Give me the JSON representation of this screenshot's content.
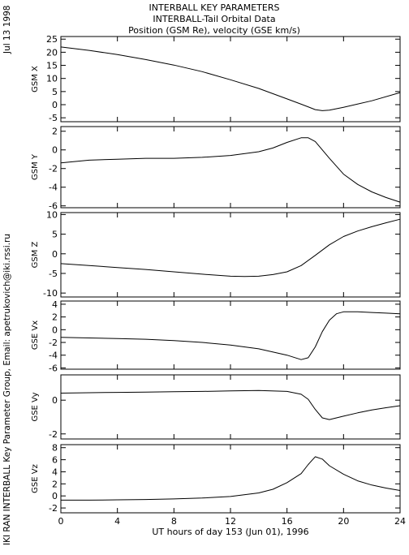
{
  "header": {
    "title1": "INTERBALL KEY PARAMETERS",
    "title2": "INTERBALL-Tail Orbital Data",
    "title3": "Position (GSM Re), velocity (GSE km/s)"
  },
  "side_labels": {
    "date": "Jul 13 1998",
    "credit": "IKI RAN INTERBALL Key Parameter Group, Email: apetrukovich@iki.rssi.ru"
  },
  "chart_data": {
    "type": "line",
    "xlabel": "UT hours of day 153 (Jun 01), 1996",
    "xlim": [
      0,
      24
    ],
    "xticks": [
      0,
      4,
      8,
      12,
      16,
      20,
      24
    ],
    "panels": [
      {
        "ylabel": "GSM X",
        "ylim": [
          -6.5,
          26
        ],
        "yticks": [
          -5,
          0,
          5,
          10,
          15,
          20,
          25
        ],
        "x": [
          0,
          2,
          4,
          6,
          8,
          10,
          12,
          14,
          16,
          17,
          18,
          18.5,
          19,
          20,
          22,
          24
        ],
        "y": [
          22,
          20.7,
          19.1,
          17.2,
          15.1,
          12.6,
          9.5,
          6.2,
          2.2,
          0.2,
          -1.9,
          -2.3,
          -2.1,
          -1.0,
          1.5,
          4.6
        ]
      },
      {
        "ylabel": "GSM Y",
        "ylim": [
          -6.2,
          2.5
        ],
        "yticks": [
          -6,
          -4,
          -2,
          0,
          2
        ],
        "x": [
          0,
          2,
          4,
          6,
          8,
          10,
          12,
          14,
          15,
          16,
          17,
          17.5,
          18,
          19,
          20,
          21,
          22,
          23,
          24
        ],
        "y": [
          -1.4,
          -1.1,
          -1.0,
          -0.9,
          -0.9,
          -0.8,
          -0.6,
          -0.2,
          0.2,
          0.8,
          1.3,
          1.3,
          0.9,
          -0.9,
          -2.6,
          -3.7,
          -4.5,
          -5.1,
          -5.6
        ]
      },
      {
        "ylabel": "GSM Z",
        "ylim": [
          -11,
          10.5
        ],
        "yticks": [
          -10,
          -5,
          0,
          5,
          10
        ],
        "x": [
          0,
          2,
          4,
          6,
          8,
          10,
          12,
          13,
          14,
          15,
          16,
          17,
          18,
          19,
          20,
          21,
          22,
          23,
          24
        ],
        "y": [
          -2.5,
          -3,
          -3.5,
          -4,
          -4.6,
          -5.2,
          -5.7,
          -5.8,
          -5.7,
          -5.3,
          -4.6,
          -3.0,
          -0.4,
          2.3,
          4.4,
          5.8,
          6.9,
          7.9,
          8.8
        ]
      },
      {
        "ylabel": "GSE Vx",
        "ylim": [
          -6.2,
          4.5
        ],
        "yticks": [
          -6,
          -4,
          -2,
          0,
          2,
          4
        ],
        "x": [
          0,
          2,
          4,
          6,
          8,
          10,
          12,
          14,
          16,
          17,
          17.5,
          18,
          18.5,
          19,
          19.5,
          20,
          21,
          22,
          23,
          24
        ],
        "y": [
          -1.2,
          -1.3,
          -1.4,
          -1.5,
          -1.7,
          -2.0,
          -2.4,
          -3.0,
          -4.0,
          -4.7,
          -4.4,
          -2.7,
          -0.3,
          1.5,
          2.5,
          2.8,
          2.8,
          2.7,
          2.6,
          2.5
        ]
      },
      {
        "ylabel": "GSE Vy",
        "ylim": [
          -2.3,
          1.5
        ],
        "yticks": [
          -2,
          0
        ],
        "x": [
          0,
          2,
          4,
          6,
          8,
          10,
          12,
          14,
          16,
          17,
          17.5,
          18,
          18.5,
          19,
          20,
          21,
          22,
          23,
          24
        ],
        "y": [
          0.42,
          0.44,
          0.46,
          0.48,
          0.5,
          0.52,
          0.55,
          0.57,
          0.52,
          0.35,
          0.05,
          -0.55,
          -1.05,
          -1.15,
          -0.95,
          -0.75,
          -0.58,
          -0.45,
          -0.33
        ]
      },
      {
        "ylabel": "GSE Vz",
        "ylim": [
          -2.8,
          8.5
        ],
        "yticks": [
          -2,
          0,
          2,
          4,
          6,
          8
        ],
        "x": [
          0,
          2,
          4,
          6,
          8,
          10,
          12,
          14,
          15,
          16,
          17,
          17.5,
          18,
          18.5,
          19,
          20,
          21,
          22,
          23,
          24
        ],
        "y": [
          -0.7,
          -0.7,
          -0.65,
          -0.6,
          -0.5,
          -0.35,
          -0.1,
          0.5,
          1.1,
          2.2,
          3.7,
          5.2,
          6.5,
          6.1,
          5.0,
          3.6,
          2.5,
          1.8,
          1.3,
          0.9
        ]
      }
    ]
  }
}
